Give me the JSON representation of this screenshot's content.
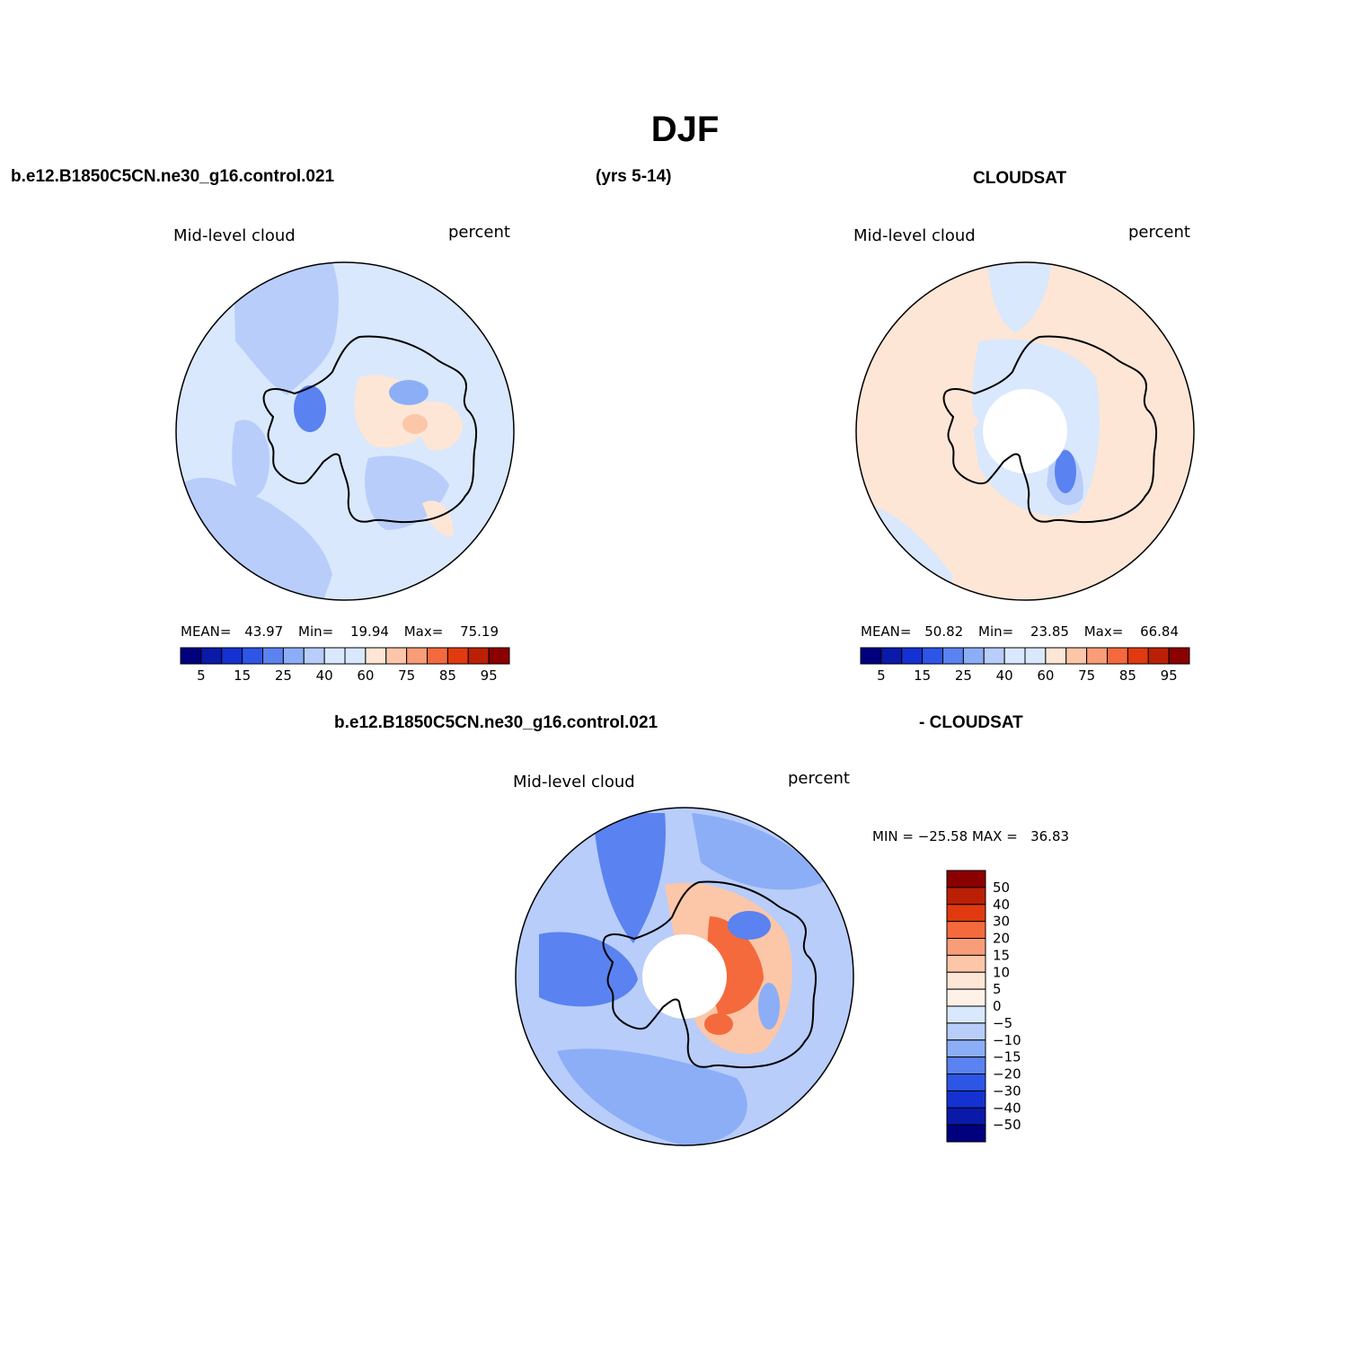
{
  "page": {
    "title": "DJF",
    "case_name": "b.e12.B1850C5CN.ne30_g16.control.021",
    "years": "(yrs 5-14)",
    "obs_name": "CLOUDSAT",
    "diff_case_name": "b.e12.B1850C5CN.ne30_g16.control.021",
    "diff_obs_name": "- CLOUDSAT"
  },
  "colors": {
    "levels": [
      "#00007f",
      "#0a1aa8",
      "#1432d2",
      "#2e56e6",
      "#5a82f0",
      "#8caef6",
      "#b8cdfa",
      "#d9e8fc",
      "#fde6d6",
      "#fcc6a8",
      "#f99d78",
      "#f46a3c",
      "#e13a10",
      "#bb2006",
      "#8b0000"
    ],
    "continent_outline": "#000000"
  },
  "panels": [
    {
      "variable": "Mid-level cloud",
      "units": "percent",
      "mean_label": "MEAN=",
      "mean": "43.97",
      "min_label": "Min=",
      "min": "19.94",
      "max_label": "Max=",
      "max": "75.19",
      "colorbar_labels": [
        "5",
        "15",
        "25",
        "40",
        "60",
        "75",
        "85",
        "95"
      ]
    },
    {
      "variable": "Mid-level cloud",
      "units": "percent",
      "mean_label": "MEAN=",
      "mean": "50.82",
      "min_label": "Min=",
      "min": "23.85",
      "max_label": "Max=",
      "max": "66.84",
      "colorbar_labels": [
        "5",
        "15",
        "25",
        "40",
        "60",
        "75",
        "85",
        "95"
      ]
    }
  ],
  "diff_panel": {
    "variable": "Mid-level cloud",
    "units": "percent",
    "minmax_text": "MIN = −25.58 MAX =   36.83",
    "colorbar_labels": [
      "50",
      "40",
      "30",
      "20",
      "15",
      "10",
      "5",
      "0",
      "−5",
      "−10",
      "−15",
      "−20",
      "−30",
      "−40",
      "−50"
    ]
  }
}
